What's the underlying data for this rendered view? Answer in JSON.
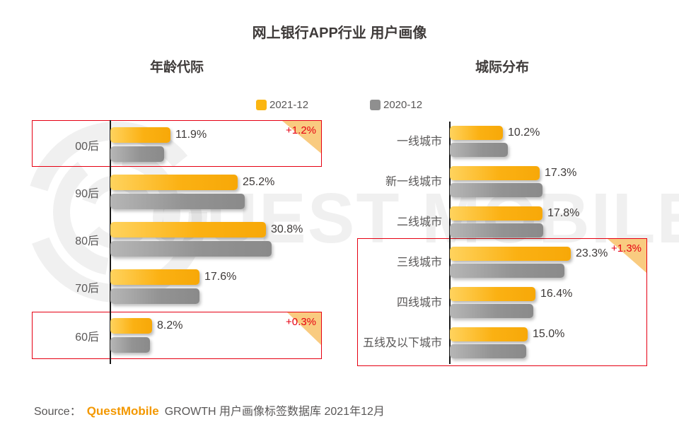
{
  "title": "网上银行APP行业 用户画像",
  "legend": [
    {
      "label": "2021-12",
      "color": "#FBB612"
    },
    {
      "label": "2020-12",
      "color": "#8F8F8F"
    }
  ],
  "chart_data": [
    {
      "type": "bar",
      "orientation": "horizontal",
      "panel_title": "年龄代际",
      "unit": "%",
      "categories": [
        "00后",
        "90后",
        "80后",
        "70后",
        "60后"
      ],
      "series": [
        {
          "name": "2021-12",
          "values": [
            11.9,
            25.2,
            30.8,
            17.6,
            8.2
          ],
          "labels": [
            "11.9%",
            "25.2%",
            "30.8%",
            "17.6%",
            "8.2%"
          ]
        },
        {
          "name": "2020-12",
          "values": [
            10.7,
            26.6,
            31.9,
            17.6,
            7.9
          ],
          "estimated": true
        }
      ],
      "annotations": [
        {
          "target": "00后",
          "delta": "+1.2%"
        },
        {
          "target": "60后",
          "delta": "+0.3%"
        }
      ]
    },
    {
      "type": "bar",
      "orientation": "horizontal",
      "panel_title": "城际分布",
      "unit": "%",
      "categories": [
        "一线城市",
        "新一线城市",
        "二线城市",
        "三线城市",
        "四线城市",
        "五线及以下城市"
      ],
      "series": [
        {
          "name": "2021-12",
          "values": [
            10.2,
            17.3,
            17.8,
            23.3,
            16.4,
            15.0
          ],
          "labels": [
            "10.2%",
            "17.3%",
            "17.8%",
            "23.3%",
            "16.4%",
            "15.0%"
          ]
        },
        {
          "name": "2020-12",
          "values": [
            11.2,
            17.8,
            18.0,
            22.0,
            16.0,
            14.7
          ],
          "estimated": true
        }
      ],
      "annotations": [
        {
          "target": "三线城市-五线及以下城市",
          "delta": "+1.3%"
        }
      ]
    }
  ],
  "colors": {
    "bar_2021": "#FBB113",
    "bar_2020": "#939393",
    "highlight_border": "#E60012",
    "badge_fill": "#F9CB80",
    "delta_text": "#E60012"
  },
  "watermark": "QUEST MOBILE",
  "source": {
    "prefix": "Source：",
    "brand": "QuestMobile",
    "rest": "GROWTH 用户画像标签数据库 2021年12月"
  }
}
